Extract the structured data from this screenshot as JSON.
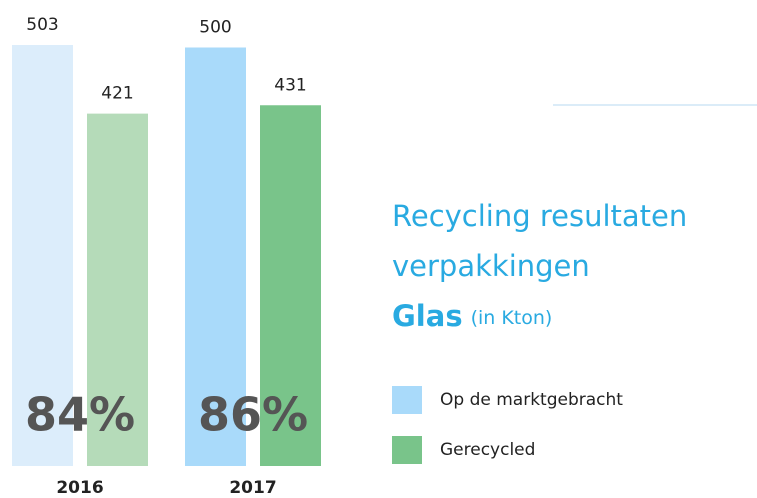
{
  "chart_data": {
    "type": "bar",
    "title": [
      "Recycling resultaten",
      "verpakkingen"
    ],
    "subtitle": "Glas",
    "unit_label": "(in Kton)",
    "categories": [
      "2016",
      "2017"
    ],
    "series": [
      {
        "name": "Op de marktgebracht",
        "color": "#a9dafa",
        "colors": [
          "#dcedfb",
          "#a9dafa"
        ],
        "values": [
          503,
          500
        ]
      },
      {
        "name": "Gerecycled",
        "color": "#79c48a",
        "colors": [
          "#b5dbb9",
          "#79c48a"
        ],
        "values": [
          421,
          431
        ]
      }
    ],
    "annotations": [
      "84%",
      "86%"
    ]
  }
}
